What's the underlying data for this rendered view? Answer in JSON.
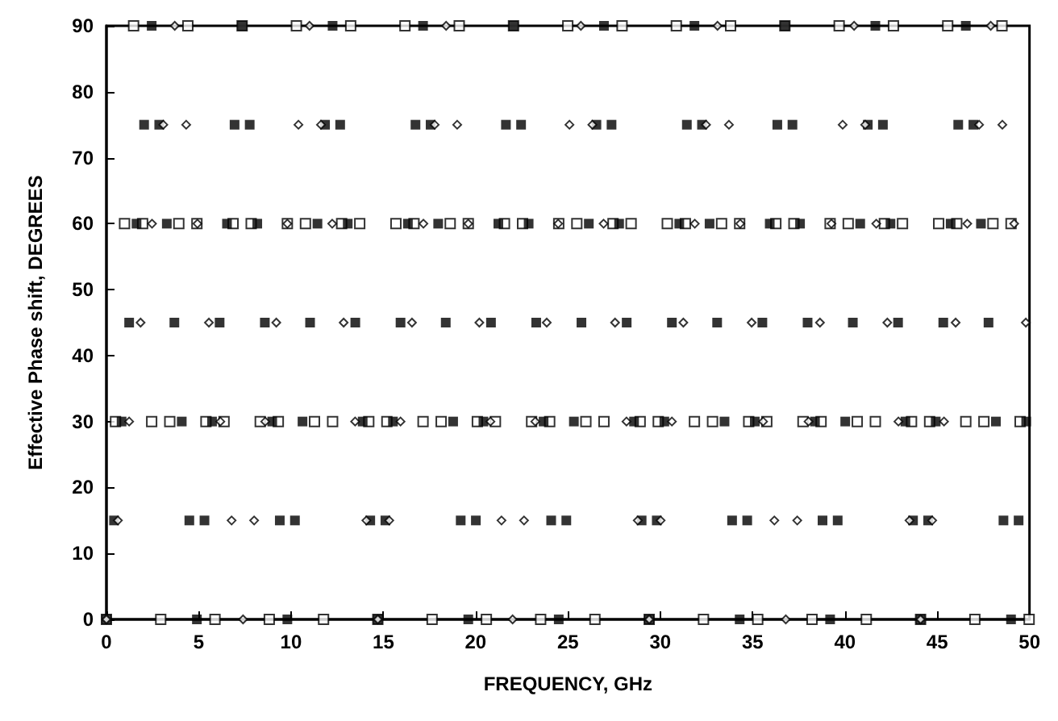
{
  "chart_data": {
    "type": "scatter",
    "xlabel": "FREQUENCY, GHz",
    "ylabel": "Effective Phase shift, DEGREES",
    "xlim": [
      0,
      50
    ],
    "xticks": [
      0,
      5,
      10,
      15,
      20,
      25,
      30,
      35,
      40,
      45,
      50
    ],
    "ylim": [
      0,
      90
    ],
    "yticks": [
      0,
      10,
      20,
      30,
      40,
      50,
      60,
      70,
      80,
      90
    ],
    "grid": false,
    "series": [
      {
        "color": "#000000",
        "marker": "square",
        "x": [
          0,
          0.49,
          0.98,
          1.47,
          1.96,
          2.45,
          2.94,
          3.43,
          3.92,
          4.41,
          4.9,
          5.39,
          5.88,
          6.37,
          6.86,
          7.35,
          7.84,
          8.33,
          8.82,
          9.31,
          9.8,
          10.29,
          10.78,
          11.27,
          11.76,
          12.25,
          12.74,
          13.23,
          13.72,
          14.21,
          14.7,
          15.19,
          15.68,
          16.17,
          16.66,
          17.15,
          17.64,
          18.13,
          18.62,
          19.11,
          19.6,
          20.09,
          20.58,
          21.07,
          21.56,
          22.05,
          22.54,
          23.03,
          23.52,
          24.01,
          24.5,
          24.99,
          25.48,
          25.97,
          26.46,
          26.95,
          27.44,
          27.93,
          28.42,
          28.91,
          29.4,
          29.89,
          30.38,
          30.87,
          31.36,
          31.85,
          32.34,
          32.83,
          33.32,
          33.81,
          34.3,
          34.79,
          35.28,
          35.77,
          36.26,
          36.75,
          37.24,
          37.73,
          38.22,
          38.71,
          39.2,
          39.69,
          40.18,
          40.67,
          41.16,
          41.65,
          42.14,
          42.63,
          43.12,
          43.61,
          44.1,
          44.59,
          45.08,
          45.57,
          46.06,
          46.55,
          47.04,
          47.53,
          48.02,
          48.51,
          49.0,
          49.49,
          49.98
        ],
        "values": [
          0,
          30,
          60,
          90,
          60,
          30,
          0,
          30,
          60,
          90,
          60,
          30,
          0,
          30,
          60,
          90,
          60,
          30,
          0,
          30,
          60,
          90,
          60,
          30,
          0,
          30,
          60,
          90,
          60,
          30,
          0,
          30,
          60,
          90,
          60,
          30,
          0,
          30,
          60,
          90,
          60,
          30,
          0,
          30,
          60,
          90,
          60,
          30,
          0,
          30,
          60,
          90,
          60,
          30,
          0,
          30,
          60,
          90,
          60,
          30,
          0,
          30,
          60,
          90,
          60,
          30,
          0,
          30,
          60,
          90,
          60,
          30,
          0,
          30,
          60,
          90,
          60,
          30,
          0,
          30,
          60,
          90,
          60,
          30,
          0,
          30,
          60,
          90,
          60,
          30,
          0,
          30,
          60,
          90,
          60,
          30,
          0,
          30,
          60,
          90,
          60,
          30,
          0
        ]
      },
      {
        "color": "#000000",
        "marker": "square",
        "x": [
          0,
          0.41,
          0.82,
          1.23,
          1.63,
          2.04,
          2.45,
          2.86,
          3.27,
          3.68,
          4.08,
          4.49,
          4.9,
          5.31,
          5.72,
          6.13,
          6.53,
          6.94,
          7.35,
          7.76,
          8.17,
          8.58,
          8.98,
          9.39,
          9.8,
          10.21,
          10.62,
          11.03,
          11.43,
          11.84,
          12.25,
          12.66,
          13.07,
          13.48,
          13.88,
          14.29,
          14.7,
          15.11,
          15.52,
          15.93,
          16.33,
          16.74,
          17.15,
          17.56,
          17.97,
          18.38,
          18.78,
          19.19,
          19.6,
          20.01,
          20.42,
          20.83,
          21.23,
          21.64,
          22.05,
          22.46,
          22.87,
          23.28,
          23.68,
          24.09,
          24.5,
          24.91,
          25.32,
          25.73,
          26.13,
          26.54,
          26.95,
          27.36,
          27.77,
          28.18,
          28.58,
          28.99,
          29.4,
          29.81,
          30.22,
          30.63,
          31.03,
          31.44,
          31.85,
          32.26,
          32.67,
          33.08,
          33.48,
          33.89,
          34.3,
          34.71,
          35.12,
          35.53,
          35.93,
          36.34,
          36.75,
          37.16,
          37.57,
          37.98,
          38.38,
          38.79,
          39.2,
          39.61,
          40.02,
          40.43,
          40.83,
          41.24,
          41.65,
          42.06,
          42.47,
          42.88,
          43.28,
          43.69,
          44.1,
          44.51,
          44.92,
          45.33,
          45.73,
          46.14,
          46.55,
          46.96,
          47.37,
          47.78,
          48.18,
          48.59,
          49.0,
          49.41,
          49.82
        ],
        "values": [
          0,
          15,
          30,
          45,
          60,
          75,
          90,
          75,
          60,
          45,
          30,
          15,
          0,
          15,
          30,
          45,
          60,
          75,
          90,
          75,
          60,
          45,
          30,
          15,
          0,
          15,
          30,
          45,
          60,
          75,
          90,
          75,
          60,
          45,
          30,
          15,
          0,
          15,
          30,
          45,
          60,
          75,
          90,
          75,
          60,
          45,
          30,
          15,
          0,
          15,
          30,
          45,
          60,
          75,
          90,
          75,
          60,
          45,
          30,
          15,
          0,
          15,
          30,
          45,
          60,
          75,
          90,
          75,
          60,
          45,
          30,
          15,
          0,
          15,
          30,
          45,
          60,
          75,
          90,
          75,
          60,
          45,
          30,
          15,
          0,
          15,
          30,
          45,
          60,
          75,
          90,
          75,
          60,
          45,
          30,
          15,
          0,
          15,
          30,
          45,
          60,
          75,
          90,
          75,
          60,
          45,
          30,
          15,
          0,
          15,
          30,
          45,
          60,
          75,
          90,
          75,
          60,
          45,
          30,
          15,
          0,
          15,
          30
        ]
      },
      {
        "color": "#000000",
        "marker": "diamond",
        "x": [
          0,
          0.62,
          1.23,
          1.85,
          2.47,
          3.08,
          3.7,
          4.32,
          4.93,
          5.55,
          6.17,
          6.78,
          7.4,
          8.0,
          8.6,
          9.2,
          9.8,
          10.4,
          11.0,
          11.62,
          12.23,
          12.85,
          13.47,
          14.08,
          14.7,
          15.32,
          15.93,
          16.55,
          17.17,
          17.78,
          18.4,
          19.0,
          19.6,
          20.2,
          20.8,
          21.4,
          22.0,
          22.62,
          23.23,
          23.85,
          24.47,
          25.08,
          25.7,
          26.32,
          26.93,
          27.55,
          28.17,
          28.78,
          29.4,
          30.02,
          30.63,
          31.25,
          31.87,
          32.48,
          33.1,
          33.72,
          34.33,
          34.95,
          35.57,
          36.18,
          36.8,
          37.42,
          38.03,
          38.65,
          39.27,
          39.88,
          40.5,
          41.1,
          41.7,
          42.3,
          42.9,
          43.5,
          44.1,
          44.73,
          45.37,
          46.0,
          46.63,
          47.27,
          47.9,
          48.53,
          49.17,
          49.8
        ],
        "values": [
          0,
          15,
          30,
          45,
          60,
          75,
          90,
          75,
          60,
          45,
          30,
          15,
          0,
          15,
          30,
          45,
          60,
          75,
          90,
          75,
          60,
          45,
          30,
          15,
          0,
          15,
          30,
          45,
          60,
          75,
          90,
          75,
          60,
          45,
          30,
          15,
          0,
          15,
          30,
          45,
          60,
          75,
          90,
          75,
          60,
          45,
          30,
          15,
          0,
          15,
          30,
          45,
          60,
          75,
          90,
          75,
          60,
          45,
          30,
          15,
          0,
          15,
          30,
          45,
          60,
          75,
          90,
          75,
          60,
          45,
          30,
          15,
          0,
          15,
          30,
          45,
          60,
          75,
          90,
          75,
          60,
          45
        ]
      }
    ]
  }
}
